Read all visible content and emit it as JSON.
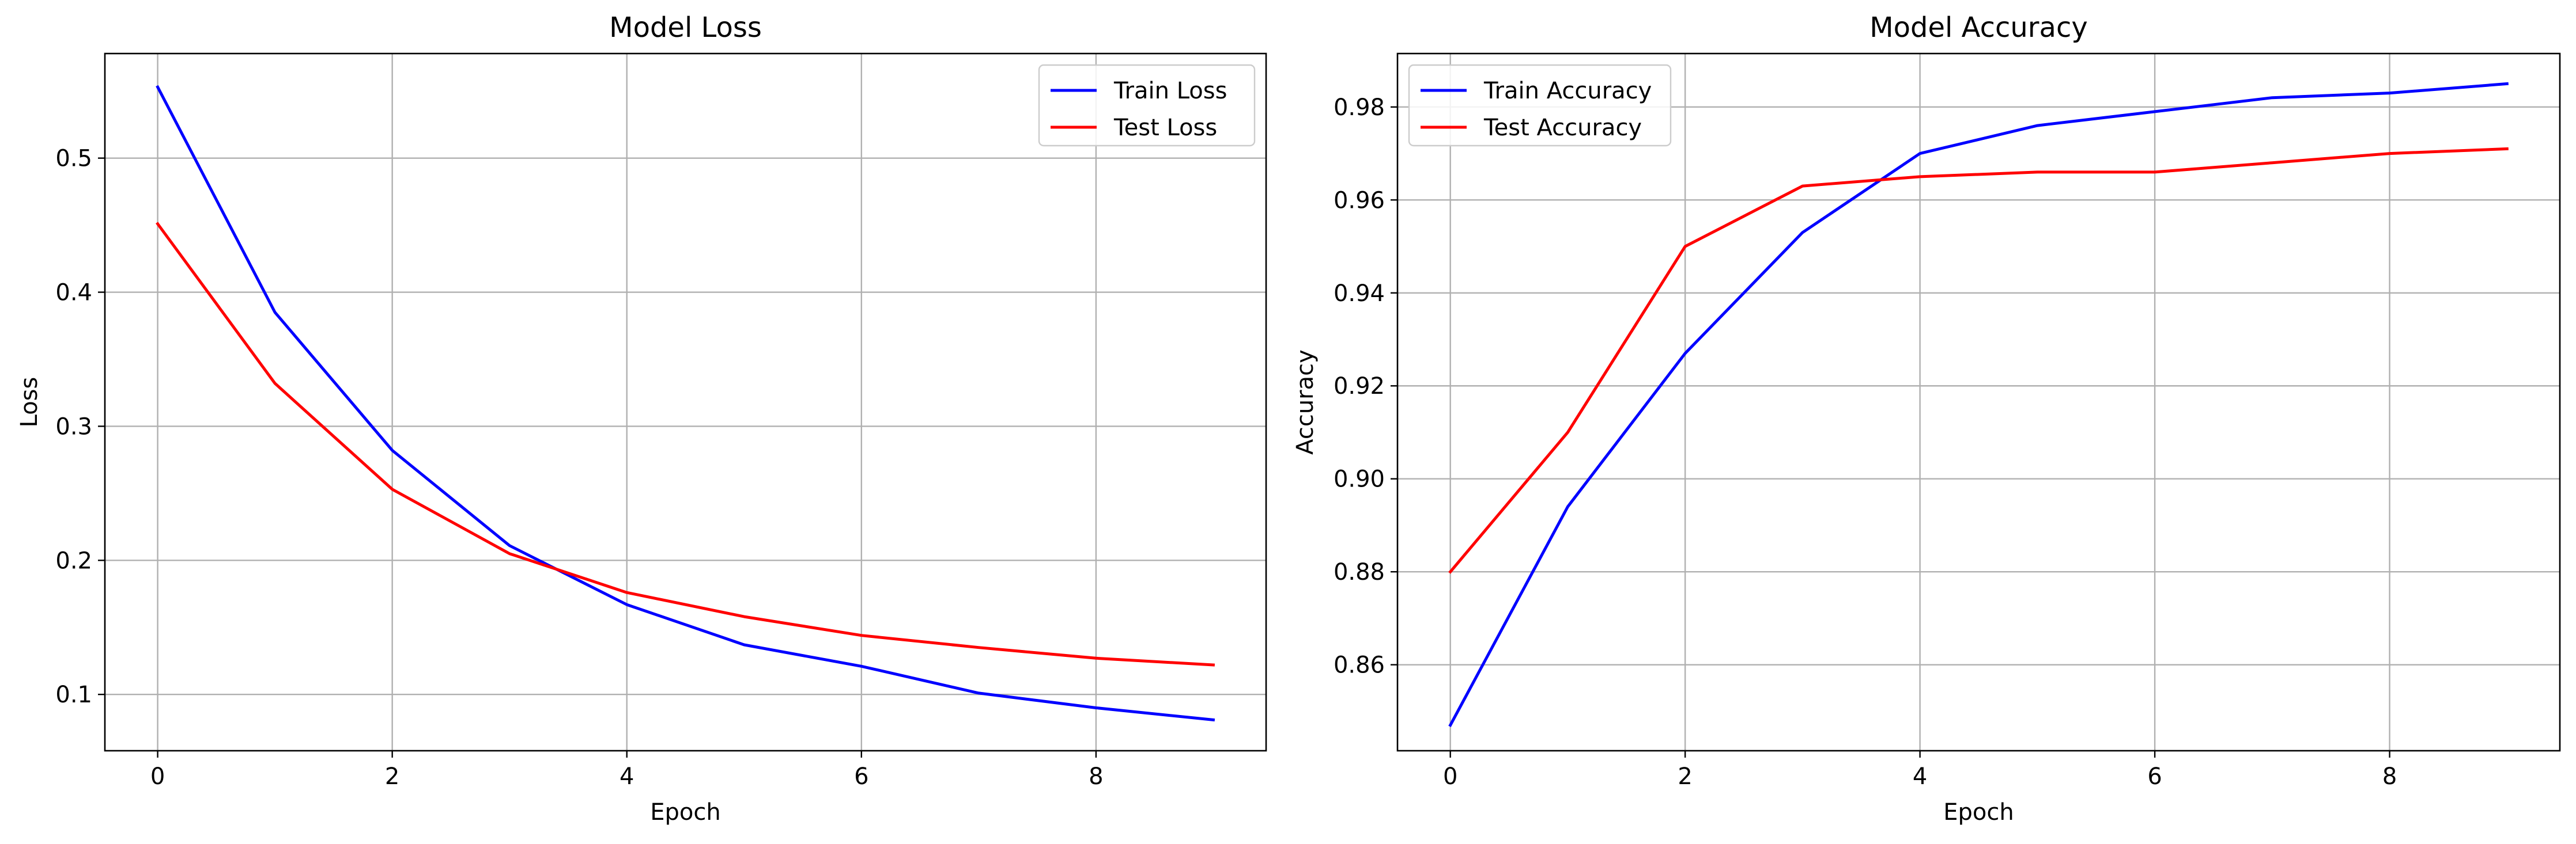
{
  "chart_data": [
    {
      "type": "line",
      "title": "Model Loss",
      "xlabel": "Epoch",
      "ylabel": "Loss",
      "x": [
        0,
        1,
        2,
        3,
        4,
        5,
        6,
        7,
        8,
        9
      ],
      "xlim": [
        -0.45,
        9.45
      ],
      "ylim": [
        0.058,
        0.578
      ],
      "xticks": [
        0,
        2,
        4,
        6,
        8
      ],
      "xtick_labels": [
        "0",
        "2",
        "4",
        "6",
        "8"
      ],
      "yticks": [
        0.1,
        0.2,
        0.3,
        0.4,
        0.5
      ],
      "ytick_labels": [
        "0.1",
        "0.2",
        "0.3",
        "0.4",
        "0.5"
      ],
      "grid": true,
      "legend_position": "upper right",
      "series": [
        {
          "name": "Train Loss",
          "color": "#0000ff",
          "values": [
            0.553,
            0.385,
            0.282,
            0.211,
            0.167,
            0.137,
            0.121,
            0.101,
            0.09,
            0.081
          ]
        },
        {
          "name": "Test Loss",
          "color": "#ff0000",
          "values": [
            0.451,
            0.332,
            0.253,
            0.205,
            0.176,
            0.158,
            0.144,
            0.135,
            0.127,
            0.122
          ]
        }
      ]
    },
    {
      "type": "line",
      "title": "Model Accuracy",
      "xlabel": "Epoch",
      "ylabel": "Accuracy",
      "x": [
        0,
        1,
        2,
        3,
        4,
        5,
        6,
        7,
        8,
        9
      ],
      "xlim": [
        -0.45,
        9.45
      ],
      "ylim": [
        0.8415,
        0.9915
      ],
      "xticks": [
        0,
        2,
        4,
        6,
        8
      ],
      "xtick_labels": [
        "0",
        "2",
        "4",
        "6",
        "8"
      ],
      "yticks": [
        0.86,
        0.88,
        0.9,
        0.92,
        0.94,
        0.96,
        0.98
      ],
      "ytick_labels": [
        "0.86",
        "0.88",
        "0.90",
        "0.92",
        "0.94",
        "0.96",
        "0.98"
      ],
      "grid": true,
      "legend_position": "upper left",
      "series": [
        {
          "name": "Train Accuracy",
          "color": "#0000ff",
          "values": [
            0.847,
            0.894,
            0.927,
            0.953,
            0.97,
            0.976,
            0.979,
            0.982,
            0.983,
            0.985
          ]
        },
        {
          "name": "Test Accuracy",
          "color": "#ff0000",
          "values": [
            0.88,
            0.91,
            0.95,
            0.963,
            0.965,
            0.966,
            0.966,
            0.968,
            0.97,
            0.971
          ]
        }
      ]
    }
  ]
}
